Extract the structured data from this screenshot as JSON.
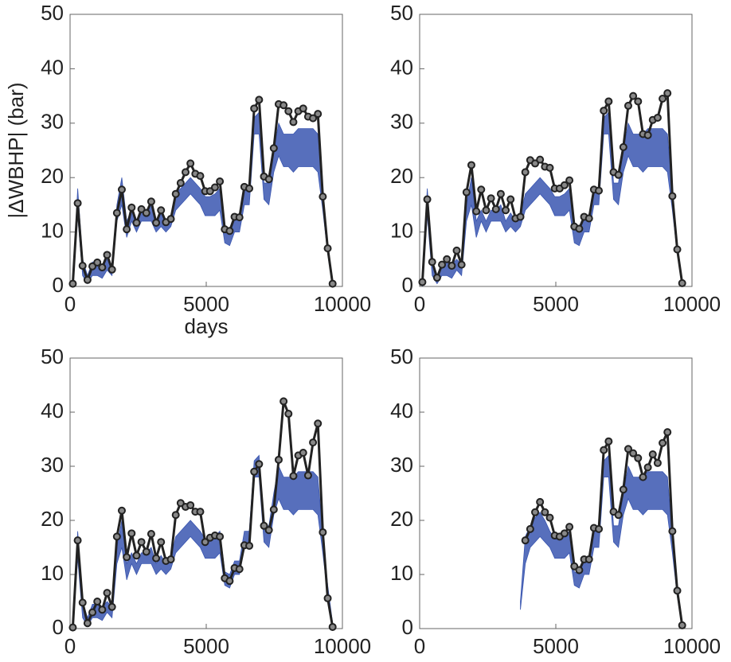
{
  "chart_data": [
    {
      "type": "line",
      "ylabel": "|ΔWBHP| (bar)",
      "xlabel": "days",
      "xlim": [
        0,
        10000
      ],
      "ylim": [
        0,
        50
      ],
      "xticks": [
        0,
        5000,
        10000
      ],
      "yticks": [
        0,
        10,
        20,
        30,
        40,
        50
      ],
      "x": [
        100,
        280,
        460,
        640,
        820,
        1000,
        1180,
        1360,
        1540,
        1720,
        1900,
        2080,
        2260,
        2440,
        2620,
        2800,
        2980,
        3160,
        3340,
        3520,
        3700,
        3880,
        4060,
        4240,
        4420,
        4600,
        4780,
        4960,
        5140,
        5320,
        5500,
        5680,
        5860,
        6040,
        6220,
        6400,
        6580,
        6760,
        6940,
        7120,
        7300,
        7480,
        7660,
        7840,
        8020,
        8200,
        8380,
        8560,
        8740,
        8920,
        9100,
        9280,
        9460,
        9640
      ],
      "band": {
        "color": "#3a56b0",
        "lower": [
          0,
          13,
          2,
          0.5,
          2,
          2,
          1.5,
          3,
          2,
          12,
          15,
          9,
          12,
          10,
          12,
          12,
          12,
          10,
          11,
          10,
          11,
          14,
          15,
          16,
          17,
          16,
          15,
          13,
          13,
          13,
          14,
          8,
          7.5,
          10,
          10,
          15,
          15,
          28,
          28,
          16,
          15,
          21,
          24,
          22,
          22,
          21,
          22,
          22,
          22,
          22,
          21,
          14,
          6,
          0
        ],
        "upper": [
          1,
          18,
          5,
          2,
          4.5,
          4.5,
          4,
          5,
          4,
          15,
          20,
          12,
          14,
          12,
          14,
          14,
          15,
          12,
          13.5,
          12,
          13,
          17,
          18,
          19,
          20,
          19,
          18,
          16.5,
          16.5,
          17,
          18,
          10.5,
          10,
          12.5,
          12.5,
          18,
          18,
          31,
          32,
          19,
          19,
          25,
          30,
          28,
          28,
          28,
          29,
          29,
          29,
          29,
          28,
          17,
          8,
          1
        ]
      },
      "series": [
        {
          "color": "#222222",
          "values": [
            0.5,
            15.3,
            3.8,
            1.2,
            3.7,
            4.4,
            3.5,
            5.8,
            3.1,
            13.5,
            17.8,
            10.5,
            14.5,
            11.7,
            14.2,
            13.5,
            15.6,
            11.7,
            14,
            11.8,
            12.4,
            17,
            19,
            21,
            22.6,
            20.7,
            20.3,
            17.5,
            17.5,
            18.2,
            19.3,
            10.5,
            10.2,
            12.8,
            12.7,
            18.3,
            18,
            32.7,
            34.3,
            20.2,
            19.7,
            25.4,
            33.5,
            33.3,
            32.2,
            30.2,
            32.2,
            32.7,
            31.2,
            30.9,
            31.7,
            16.5,
            7,
            0.5
          ]
        }
      ]
    },
    {
      "type": "line",
      "xlim": [
        0,
        10000
      ],
      "ylim": [
        0,
        50
      ],
      "xticks": [
        0,
        5000,
        10000
      ],
      "yticks": [
        0,
        10,
        20,
        30,
        40,
        50
      ],
      "x": [
        100,
        280,
        460,
        640,
        820,
        1000,
        1180,
        1360,
        1540,
        1720,
        1900,
        2080,
        2260,
        2440,
        2620,
        2800,
        2980,
        3160,
        3340,
        3520,
        3700,
        3880,
        4060,
        4240,
        4420,
        4600,
        4780,
        4960,
        5140,
        5320,
        5500,
        5680,
        5860,
        6040,
        6220,
        6400,
        6580,
        6760,
        6940,
        7120,
        7300,
        7480,
        7660,
        7840,
        8020,
        8200,
        8380,
        8560,
        8740,
        8920,
        9100,
        9280,
        9460,
        9640
      ],
      "band": {
        "color": "#3a56b0",
        "lower": [
          0,
          13,
          2,
          0.5,
          2,
          2,
          1.5,
          3,
          2,
          12,
          15,
          9,
          12,
          10,
          12,
          12,
          12,
          10,
          11,
          10,
          11,
          14,
          15,
          16,
          17,
          16,
          15,
          13,
          13,
          13,
          14,
          8,
          7.5,
          10,
          10,
          15,
          15,
          28,
          28,
          16,
          15,
          21,
          24,
          22,
          22,
          21,
          22,
          22,
          22,
          22,
          21,
          14,
          6,
          0
        ],
        "upper": [
          1,
          18,
          5,
          2,
          4.5,
          4.5,
          4,
          5,
          4,
          15,
          20,
          12,
          14,
          12,
          14,
          14,
          15,
          12,
          13.5,
          12,
          13,
          17,
          18,
          19,
          20,
          19,
          18,
          16.5,
          16.5,
          17,
          18,
          10.5,
          10,
          12.5,
          12.5,
          18,
          18,
          31,
          32,
          19,
          19,
          25,
          30,
          28,
          28,
          28,
          29,
          29,
          29,
          29,
          28,
          17,
          8,
          1
        ]
      },
      "series": [
        {
          "color": "#222222",
          "values": [
            0.8,
            16,
            4.5,
            1.6,
            4,
            5,
            3.8,
            6.6,
            4,
            17.3,
            22.3,
            13.8,
            17.8,
            14,
            16.2,
            14.2,
            17,
            14,
            16,
            12.5,
            12.8,
            21,
            23.2,
            22.6,
            23.3,
            22,
            21.8,
            18,
            18,
            18.6,
            19.5,
            11,
            10.6,
            12.8,
            12.5,
            17.8,
            17.6,
            32.3,
            34,
            21,
            20.5,
            25.6,
            33.2,
            35,
            34,
            28,
            27.8,
            30.6,
            31,
            34.5,
            35.5,
            16.6,
            6.8,
            0.6
          ]
        }
      ]
    },
    {
      "type": "line",
      "xlim": [
        0,
        10000
      ],
      "ylim": [
        0,
        50
      ],
      "xticks": [
        0,
        5000,
        10000
      ],
      "yticks": [
        0,
        10,
        20,
        30,
        40,
        50
      ],
      "x": [
        100,
        280,
        460,
        640,
        820,
        1000,
        1180,
        1360,
        1540,
        1720,
        1900,
        2080,
        2260,
        2440,
        2620,
        2800,
        2980,
        3160,
        3340,
        3520,
        3700,
        3880,
        4060,
        4240,
        4420,
        4600,
        4780,
        4960,
        5140,
        5320,
        5500,
        5680,
        5860,
        6040,
        6220,
        6400,
        6580,
        6760,
        6940,
        7120,
        7300,
        7480,
        7660,
        7840,
        8020,
        8200,
        8380,
        8560,
        8740,
        8920,
        9100,
        9280,
        9460,
        9640
      ],
      "band": {
        "color": "#3a56b0",
        "lower": [
          0,
          13,
          2,
          0.5,
          2,
          2,
          1.5,
          3,
          2,
          12,
          15,
          9,
          12,
          10,
          12,
          12,
          12,
          10,
          11,
          10,
          11,
          14,
          15,
          16,
          17,
          16,
          15,
          13,
          13,
          13,
          14,
          8,
          7.5,
          10,
          10,
          15,
          15,
          28,
          28,
          16,
          15,
          21,
          24,
          22,
          22,
          21,
          22,
          22,
          22,
          22,
          21,
          14,
          6,
          0
        ],
        "upper": [
          1,
          18,
          5,
          2,
          4.5,
          4.5,
          4,
          5,
          4,
          15,
          20,
          12,
          14,
          12,
          14,
          14,
          15,
          12,
          13.5,
          12,
          13,
          17,
          18,
          19,
          20,
          19,
          18,
          16.5,
          16.5,
          17,
          18,
          10.5,
          10,
          12.5,
          12.5,
          18,
          18,
          31,
          32,
          19,
          19,
          25,
          30,
          28,
          28,
          28,
          29,
          29,
          29,
          29,
          28,
          17,
          8,
          1
        ]
      },
      "series": [
        {
          "color": "#222222",
          "values": [
            0.2,
            16.3,
            4.8,
            1,
            3,
            5,
            3.5,
            6.6,
            4,
            17,
            21.8,
            13.2,
            17.6,
            13.5,
            16,
            14.2,
            17.5,
            13,
            16,
            12.5,
            12.8,
            21,
            23.2,
            22.5,
            22.8,
            21.6,
            21.6,
            16,
            16.8,
            17.2,
            17,
            9.3,
            8.8,
            11.2,
            11,
            15.4,
            15.3,
            29,
            30.4,
            19,
            18.2,
            22,
            31.2,
            42,
            39.7,
            28.2,
            32,
            32.5,
            28.3,
            34.4,
            37.9,
            17.8,
            5.6,
            0.3
          ]
        }
      ]
    },
    {
      "type": "line",
      "xlim": [
        0,
        10000
      ],
      "ylim": [
        0,
        50
      ],
      "xticks": [
        0,
        5000,
        10000
      ],
      "yticks": [
        0,
        10,
        20,
        30,
        40,
        50
      ],
      "x": [
        100,
        280,
        460,
        640,
        820,
        1000,
        1180,
        1360,
        1540,
        1720,
        1900,
        2080,
        2260,
        2440,
        2620,
        2800,
        2980,
        3160,
        3340,
        3520,
        3700,
        3880,
        4060,
        4240,
        4420,
        4600,
        4780,
        4960,
        5140,
        5320,
        5500,
        5680,
        5860,
        6040,
        6220,
        6400,
        6580,
        6760,
        6940,
        7120,
        7300,
        7480,
        7660,
        7840,
        8020,
        8200,
        8380,
        8560,
        8740,
        8920,
        9100,
        9280,
        9460,
        9640
      ],
      "band": {
        "color": "#3a56b0",
        "lower": [
          null,
          null,
          null,
          null,
          null,
          null,
          null,
          null,
          null,
          null,
          null,
          null,
          null,
          null,
          null,
          null,
          null,
          null,
          null,
          null,
          3.5,
          12,
          15,
          16,
          17,
          16,
          15,
          13,
          13,
          13,
          14,
          8,
          7.5,
          10,
          10,
          15,
          15,
          28,
          28,
          16,
          15,
          21,
          24,
          22,
          22,
          21,
          22,
          22,
          22,
          22,
          21,
          14,
          6,
          0
        ],
        "upper": [
          null,
          null,
          null,
          null,
          null,
          null,
          null,
          null,
          null,
          null,
          null,
          null,
          null,
          null,
          null,
          null,
          null,
          null,
          null,
          null,
          5,
          17,
          19,
          20.5,
          21.5,
          20,
          18,
          16.5,
          16.5,
          17,
          18,
          10.5,
          10,
          12.5,
          12.5,
          18,
          18,
          31,
          32,
          19,
          19,
          25,
          30,
          28,
          28,
          28,
          29,
          29,
          29,
          29,
          28,
          17,
          8,
          1
        ]
      },
      "series": [
        {
          "color": "#222222",
          "values": [
            null,
            null,
            null,
            null,
            null,
            null,
            null,
            null,
            null,
            null,
            null,
            null,
            null,
            null,
            null,
            null,
            null,
            null,
            null,
            null,
            null,
            16.3,
            18.4,
            21.5,
            23.4,
            21.5,
            20.5,
            17.2,
            17,
            17.6,
            18.8,
            11.5,
            10.8,
            12.8,
            12.8,
            18.6,
            18.4,
            33,
            34.6,
            21.6,
            21,
            25.7,
            33.2,
            32.4,
            31.5,
            28,
            29.8,
            32.2,
            30.6,
            34.3,
            36.3,
            18,
            7,
            0.6
          ]
        }
      ]
    }
  ]
}
